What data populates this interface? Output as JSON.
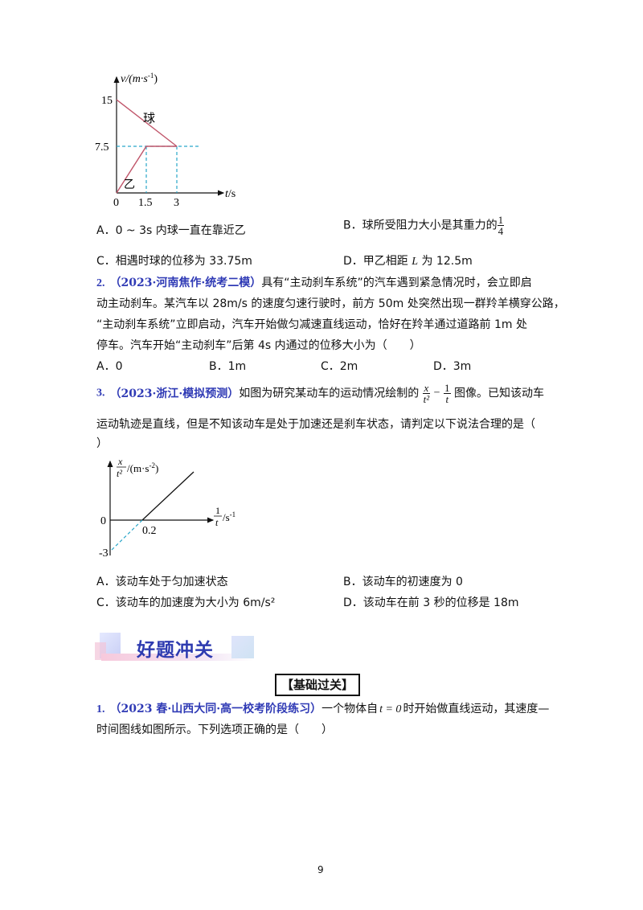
{
  "graph1": {
    "y_axis_label": "v/(m·s",
    "y_axis_sup": "-1",
    "y_axis_close": ")",
    "x_axis_label_var": "t",
    "x_axis_label_unit": "/s",
    "ticks_y": [
      "15",
      "7.5"
    ],
    "ticks_x": [
      "0",
      "1.5",
      "3"
    ],
    "line_label_ball": "球",
    "line_label_yi": "乙",
    "colors": {
      "lines": "#c0556a",
      "dashed": "#29a6c9"
    }
  },
  "q_prev_options": {
    "a": "A．0 ~ 3s 内球一直在靠近乙",
    "b_text": "B．球所受阻力大小是其重力的",
    "b_num": "1",
    "b_den": "4",
    "c": "C．相遇时球的位移为 33.75m",
    "d_pre": "D．甲乙相距",
    "d_var": "L",
    "d_post": "为 12.5m"
  },
  "q2": {
    "num": "2.",
    "source": "（2023·河南焦作·统考二模）",
    "line1": "具有“主动刹车系统”的汽车遇到紧急情况时，会立即启",
    "line2": "动主动刹车。某汽车以 28m/s 的速度匀速行驶时，前方 50m 处突然出现一群羚羊横穿公路，",
    "line3": "“主动刹车系统”立即启动，汽车开始做匀减速直线运动，恰好在羚羊通过道路前 1m 处",
    "line4": "停车。汽车开始“主动刹车”后第 4s 内通过的位移大小为（　　）",
    "opt_a": "A．0",
    "opt_b": "B．1m",
    "opt_c": "C．2m",
    "opt_d": "D．3m"
  },
  "q3": {
    "num": "3.",
    "source": "（2023·浙江·模拟预测）",
    "pre": "如图为研究某动车的运动情况绘制的",
    "frac1_num": "x",
    "frac1_den": "t²",
    "minus": "−",
    "frac2_num": "1",
    "frac2_den": "t",
    "post": "图像。已知该动车",
    "line2": "运动轨迹是直线，但是不知该动车是处于加速还是刹车状态，请判定以下说法合理的是（",
    "line3": "）",
    "opt_a": "A．该动车处于匀加速状态",
    "opt_b": "B．该动车的初速度为 0",
    "opt_c": "C．该动车的加速度为大小为 6m/s²",
    "opt_d": "D．该动车在前 3 秒的位移是 18m"
  },
  "graph2": {
    "y_label_num": "x",
    "y_label_den": "t²",
    "y_label_unit": "/(m·s",
    "y_label_sup": "-2",
    "y_label_close": ")",
    "x_label_num": "1",
    "x_label_den": "t",
    "x_label_unit": "/s",
    "x_label_sup": "-1",
    "tick_zero": "0",
    "tick_x": "0.2",
    "tick_y": "-3",
    "colors": {
      "line": "#111111",
      "dashed": "#29a6c9"
    }
  },
  "banner": {
    "text": "好题冲关"
  },
  "section": {
    "title": "【基础过关】"
  },
  "q1": {
    "num": "1.",
    "source": "（2023 春·山西大同·高一校考阶段练习）",
    "pre": "一个物体自",
    "math": "t = 0",
    "post": "时开始做直线运动，其速度—",
    "line2": "时间图线如图所示。下列选项正确的是（　　）"
  },
  "footer": {
    "page_number": "9"
  }
}
